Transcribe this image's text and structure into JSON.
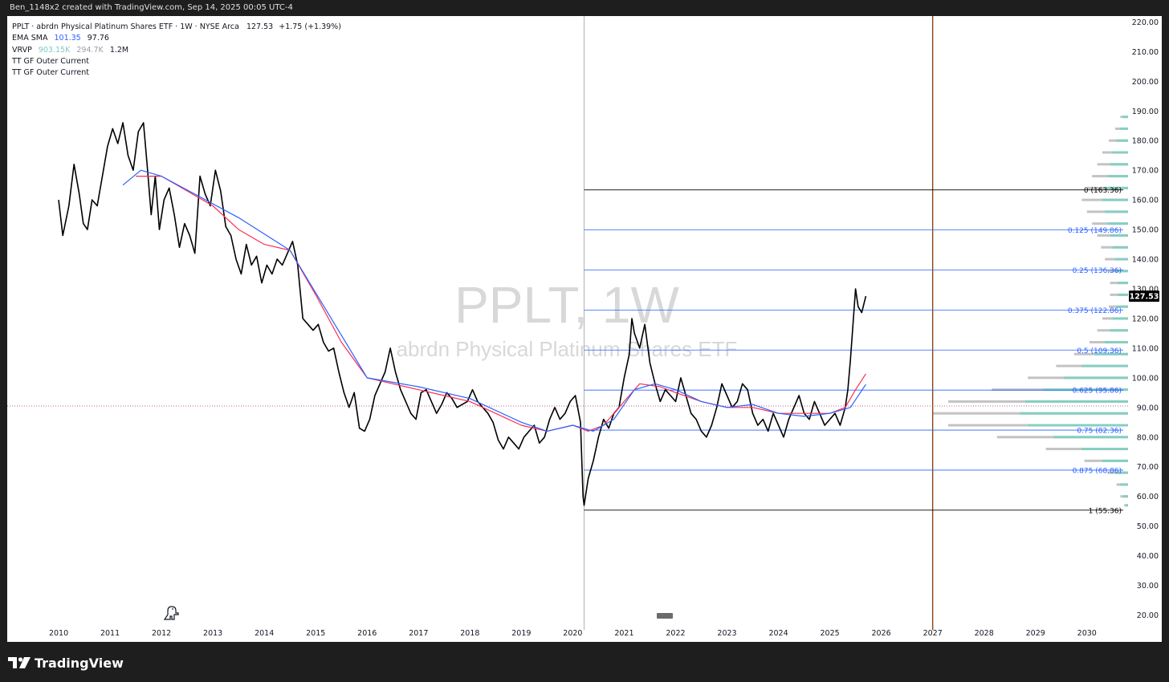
{
  "header": {
    "caption": "Ben_1148x2 created with TradingView.com, Sep 14, 2025 00:05 UTC-4"
  },
  "legend": {
    "symbol_line": "PPLT · abrdn Physical Platinum Shares ETF · 1W · NYSE Arca",
    "price": "127.53",
    "change": "+1.75 (+1.39%)",
    "ema_sma_label": "EMA SMA",
    "ema_value": "101.35",
    "sma_value": "97.76",
    "vrvp_label": "VRVP",
    "vrvp_up": "903.15K",
    "vrvp_down": "294.7K",
    "vrvp_total": "1.2M",
    "indicator_1": "TT GF Outer Current",
    "indicator_2": "TT GF Outer Current"
  },
  "watermark": {
    "line1": "PPLT, 1W",
    "line2": "abrdn Physical Platinum Shares ETF"
  },
  "footer": {
    "brand": "TradingView"
  },
  "colors": {
    "price_line": "#000000",
    "ema": "#ff2d55",
    "sma": "#2962ff",
    "fib": "#2962ff",
    "fib_end": "#000000",
    "vertical_marker": "#8b4513",
    "volume_profile_up": "#7fcfc2",
    "volume_profile_down": "#bdbdbd",
    "price_label_bg": "#000000"
  },
  "icons": {
    "brand_logo": "tradingview-logo-icon",
    "badge": "dino-icon"
  },
  "chart_data": {
    "type": "line",
    "title": "PPLT, 1W",
    "xlabel": "",
    "ylabel": "",
    "x_ticks": [
      "2010",
      "2011",
      "2012",
      "2013",
      "2014",
      "2015",
      "2016",
      "2017",
      "2018",
      "2019",
      "2020",
      "2021",
      "2022",
      "2023",
      "2024",
      "2025",
      "2026",
      "2027",
      "2028",
      "2029",
      "2030"
    ],
    "y_ticks": [
      "20.00",
      "30.00",
      "40.00",
      "50.00",
      "60.00",
      "70.00",
      "80.00",
      "90.00",
      "100.00",
      "110.00",
      "120.00",
      "130.00",
      "140.00",
      "150.00",
      "160.00",
      "170.00",
      "180.00",
      "190.00",
      "200.00",
      "210.00",
      "220.00"
    ],
    "ylim": [
      15,
      222
    ],
    "xlim": [
      2009.0,
      2030.8
    ],
    "grid": false,
    "last_price": 127.53,
    "last_price_label": "127.53",
    "vertical_marker_x": 2027.0,
    "anchor_x": 2020.22,
    "hline_price": 90.5,
    "series": [
      {
        "name": "PPLT",
        "points": [
          [
            2010.0,
            160
          ],
          [
            2010.08,
            148
          ],
          [
            2010.2,
            158
          ],
          [
            2010.3,
            172
          ],
          [
            2010.4,
            162
          ],
          [
            2010.48,
            152
          ],
          [
            2010.56,
            150
          ],
          [
            2010.65,
            160
          ],
          [
            2010.75,
            158
          ],
          [
            2010.85,
            168
          ],
          [
            2010.95,
            178
          ],
          [
            2011.05,
            184
          ],
          [
            2011.15,
            179
          ],
          [
            2011.25,
            186
          ],
          [
            2011.35,
            175
          ],
          [
            2011.45,
            170
          ],
          [
            2011.55,
            183
          ],
          [
            2011.65,
            186
          ],
          [
            2011.72,
            172
          ],
          [
            2011.8,
            155
          ],
          [
            2011.88,
            168
          ],
          [
            2011.96,
            150
          ],
          [
            2012.05,
            160
          ],
          [
            2012.15,
            164
          ],
          [
            2012.25,
            155
          ],
          [
            2012.35,
            144
          ],
          [
            2012.45,
            152
          ],
          [
            2012.55,
            148
          ],
          [
            2012.65,
            142
          ],
          [
            2012.75,
            168
          ],
          [
            2012.85,
            162
          ],
          [
            2012.95,
            158
          ],
          [
            2013.05,
            170
          ],
          [
            2013.15,
            163
          ],
          [
            2013.25,
            151
          ],
          [
            2013.35,
            148
          ],
          [
            2013.45,
            140
          ],
          [
            2013.55,
            135
          ],
          [
            2013.65,
            145
          ],
          [
            2013.75,
            138
          ],
          [
            2013.85,
            141
          ],
          [
            2013.95,
            132
          ],
          [
            2014.05,
            138
          ],
          [
            2014.15,
            135
          ],
          [
            2014.25,
            140
          ],
          [
            2014.35,
            138
          ],
          [
            2014.45,
            142
          ],
          [
            2014.55,
            146
          ],
          [
            2014.65,
            138
          ],
          [
            2014.75,
            120
          ],
          [
            2014.85,
            118
          ],
          [
            2014.95,
            116
          ],
          [
            2015.05,
            118
          ],
          [
            2015.15,
            112
          ],
          [
            2015.25,
            109
          ],
          [
            2015.35,
            110
          ],
          [
            2015.45,
            102
          ],
          [
            2015.55,
            95
          ],
          [
            2015.65,
            90
          ],
          [
            2015.75,
            95
          ],
          [
            2015.85,
            83
          ],
          [
            2015.95,
            82
          ],
          [
            2016.05,
            86
          ],
          [
            2016.15,
            94
          ],
          [
            2016.25,
            98
          ],
          [
            2016.35,
            102
          ],
          [
            2016.45,
            110
          ],
          [
            2016.55,
            102
          ],
          [
            2016.65,
            96
          ],
          [
            2016.75,
            92
          ],
          [
            2016.85,
            88
          ],
          [
            2016.95,
            86
          ],
          [
            2017.05,
            95
          ],
          [
            2017.15,
            96
          ],
          [
            2017.25,
            92
          ],
          [
            2017.35,
            88
          ],
          [
            2017.45,
            91
          ],
          [
            2017.55,
            95
          ],
          [
            2017.65,
            93
          ],
          [
            2017.75,
            90
          ],
          [
            2017.85,
            91
          ],
          [
            2017.95,
            92
          ],
          [
            2018.05,
            96
          ],
          [
            2018.15,
            92
          ],
          [
            2018.25,
            90
          ],
          [
            2018.35,
            88
          ],
          [
            2018.45,
            85
          ],
          [
            2018.55,
            79
          ],
          [
            2018.65,
            76
          ],
          [
            2018.75,
            80
          ],
          [
            2018.85,
            78
          ],
          [
            2018.95,
            76
          ],
          [
            2019.05,
            80
          ],
          [
            2019.15,
            82
          ],
          [
            2019.25,
            84
          ],
          [
            2019.35,
            78
          ],
          [
            2019.45,
            80
          ],
          [
            2019.55,
            86
          ],
          [
            2019.65,
            90
          ],
          [
            2019.75,
            86
          ],
          [
            2019.85,
            88
          ],
          [
            2019.95,
            92
          ],
          [
            2020.05,
            94
          ],
          [
            2020.15,
            85
          ],
          [
            2020.2,
            60
          ],
          [
            2020.22,
            57
          ],
          [
            2020.3,
            66
          ],
          [
            2020.4,
            72
          ],
          [
            2020.5,
            80
          ],
          [
            2020.6,
            86
          ],
          [
            2020.7,
            83
          ],
          [
            2020.8,
            88
          ],
          [
            2020.9,
            90
          ],
          [
            2021.0,
            100
          ],
          [
            2021.1,
            108
          ],
          [
            2021.15,
            120
          ],
          [
            2021.2,
            115
          ],
          [
            2021.3,
            110
          ],
          [
            2021.4,
            118
          ],
          [
            2021.5,
            105
          ],
          [
            2021.6,
            98
          ],
          [
            2021.7,
            92
          ],
          [
            2021.8,
            96
          ],
          [
            2021.9,
            94
          ],
          [
            2022.0,
            92
          ],
          [
            2022.1,
            100
          ],
          [
            2022.2,
            94
          ],
          [
            2022.3,
            88
          ],
          [
            2022.4,
            86
          ],
          [
            2022.5,
            82
          ],
          [
            2022.6,
            80
          ],
          [
            2022.7,
            84
          ],
          [
            2022.8,
            90
          ],
          [
            2022.9,
            98
          ],
          [
            2023.0,
            94
          ],
          [
            2023.1,
            90
          ],
          [
            2023.2,
            92
          ],
          [
            2023.3,
            98
          ],
          [
            2023.4,
            96
          ],
          [
            2023.5,
            88
          ],
          [
            2023.6,
            84
          ],
          [
            2023.7,
            86
          ],
          [
            2023.8,
            82
          ],
          [
            2023.9,
            88
          ],
          [
            2024.0,
            84
          ],
          [
            2024.1,
            80
          ],
          [
            2024.2,
            86
          ],
          [
            2024.3,
            90
          ],
          [
            2024.4,
            94
          ],
          [
            2024.5,
            88
          ],
          [
            2024.6,
            86
          ],
          [
            2024.7,
            92
          ],
          [
            2024.8,
            88
          ],
          [
            2024.9,
            84
          ],
          [
            2025.0,
            86
          ],
          [
            2025.1,
            88
          ],
          [
            2025.2,
            84
          ],
          [
            2025.3,
            90
          ],
          [
            2025.35,
            96
          ],
          [
            2025.4,
            106
          ],
          [
            2025.45,
            118
          ],
          [
            2025.5,
            130
          ],
          [
            2025.55,
            124
          ],
          [
            2025.62,
            122
          ],
          [
            2025.7,
            127.53
          ]
        ]
      },
      {
        "name": "EMA",
        "points": [
          [
            2011.5,
            168
          ],
          [
            2012.0,
            168
          ],
          [
            2012.5,
            163
          ],
          [
            2013.0,
            158
          ],
          [
            2013.5,
            150
          ],
          [
            2014.0,
            145
          ],
          [
            2014.5,
            143
          ],
          [
            2015.0,
            128
          ],
          [
            2015.5,
            112
          ],
          [
            2016.0,
            100
          ],
          [
            2016.5,
            98
          ],
          [
            2017.0,
            96
          ],
          [
            2017.5,
            94
          ],
          [
            2018.0,
            92
          ],
          [
            2018.5,
            88
          ],
          [
            2019.0,
            84
          ],
          [
            2019.5,
            82
          ],
          [
            2020.0,
            84
          ],
          [
            2020.3,
            82
          ],
          [
            2020.6,
            84
          ],
          [
            2021.0,
            92
          ],
          [
            2021.3,
            98
          ],
          [
            2021.7,
            97
          ],
          [
            2022.0,
            95
          ],
          [
            2022.5,
            92
          ],
          [
            2023.0,
            90
          ],
          [
            2023.5,
            90
          ],
          [
            2024.0,
            88
          ],
          [
            2024.5,
            88
          ],
          [
            2025.0,
            88
          ],
          [
            2025.3,
            90
          ],
          [
            2025.5,
            96
          ],
          [
            2025.7,
            101.35
          ]
        ]
      },
      {
        "name": "SMA",
        "points": [
          [
            2011.25,
            165
          ],
          [
            2011.6,
            170
          ],
          [
            2012.0,
            168
          ],
          [
            2013.5,
            154
          ],
          [
            2014.5,
            143
          ],
          [
            2016.0,
            100
          ],
          [
            2017.0,
            97
          ],
          [
            2018.0,
            93
          ],
          [
            2019.0,
            85
          ],
          [
            2019.5,
            82
          ],
          [
            2020.0,
            84
          ],
          [
            2020.4,
            82
          ],
          [
            2020.8,
            86
          ],
          [
            2021.2,
            96
          ],
          [
            2021.6,
            98
          ],
          [
            2022.0,
            96
          ],
          [
            2022.5,
            92
          ],
          [
            2023.0,
            90
          ],
          [
            2023.5,
            91
          ],
          [
            2024.0,
            88
          ],
          [
            2024.5,
            87
          ],
          [
            2025.0,
            88
          ],
          [
            2025.4,
            90
          ],
          [
            2025.7,
            97.76
          ]
        ]
      }
    ],
    "fib_levels": [
      {
        "ratio": "0",
        "price": 163.36,
        "label": "0 (163.36)"
      },
      {
        "ratio": "0.125",
        "price": 149.86,
        "label": "0.125 (149.86)"
      },
      {
        "ratio": "0.25",
        "price": 136.36,
        "label": "0.25 (136.36)"
      },
      {
        "ratio": "0.375",
        "price": 122.86,
        "label": "0.375 (122.86)"
      },
      {
        "ratio": "0.5",
        "price": 109.36,
        "label": "0.5 (109.36)"
      },
      {
        "ratio": "0.625",
        "price": 95.86,
        "label": "0.625 (95.86)"
      },
      {
        "ratio": "0.75",
        "price": 82.36,
        "label": "0.75 (82.36)"
      },
      {
        "ratio": "0.875",
        "price": 68.86,
        "label": "0.875 (68.86)"
      },
      {
        "ratio": "1",
        "price": 55.36,
        "label": "1 (55.36)"
      }
    ],
    "volume_profile": [
      {
        "price": 188,
        "up": 4,
        "down": 2
      },
      {
        "price": 184,
        "up": 6,
        "down": 4
      },
      {
        "price": 180,
        "up": 9,
        "down": 6
      },
      {
        "price": 176,
        "up": 12,
        "down": 8
      },
      {
        "price": 172,
        "up": 14,
        "down": 10
      },
      {
        "price": 168,
        "up": 16,
        "down": 12
      },
      {
        "price": 164,
        "up": 18,
        "down": 14
      },
      {
        "price": 160,
        "up": 20,
        "down": 16
      },
      {
        "price": 156,
        "up": 18,
        "down": 14
      },
      {
        "price": 152,
        "up": 16,
        "down": 12
      },
      {
        "price": 148,
        "up": 14,
        "down": 10
      },
      {
        "price": 144,
        "up": 12,
        "down": 9
      },
      {
        "price": 140,
        "up": 10,
        "down": 8
      },
      {
        "price": 136,
        "up": 9,
        "down": 7
      },
      {
        "price": 132,
        "up": 8,
        "down": 6
      },
      {
        "price": 128,
        "up": 8,
        "down": 6
      },
      {
        "price": 124,
        "up": 9,
        "down": 6
      },
      {
        "price": 120,
        "up": 12,
        "down": 8
      },
      {
        "price": 116,
        "up": 14,
        "down": 10
      },
      {
        "price": 112,
        "up": 18,
        "down": 12
      },
      {
        "price": 108,
        "up": 26,
        "down": 16
      },
      {
        "price": 104,
        "up": 36,
        "down": 20
      },
      {
        "price": 100,
        "up": 50,
        "down": 28
      },
      {
        "price": 96,
        "up": 66,
        "down": 40
      },
      {
        "price": 92,
        "up": 80,
        "down": 60
      },
      {
        "price": 88,
        "up": 84,
        "down": 68
      },
      {
        "price": 84,
        "up": 78,
        "down": 62
      },
      {
        "price": 80,
        "up": 58,
        "down": 44
      },
      {
        "price": 76,
        "up": 36,
        "down": 28
      },
      {
        "price": 72,
        "up": 20,
        "down": 14
      },
      {
        "price": 68,
        "up": 10,
        "down": 6
      },
      {
        "price": 64,
        "up": 6,
        "down": 3
      },
      {
        "price": 60,
        "up": 4,
        "down": 2
      },
      {
        "price": 57,
        "up": 2,
        "down": 1
      }
    ]
  }
}
